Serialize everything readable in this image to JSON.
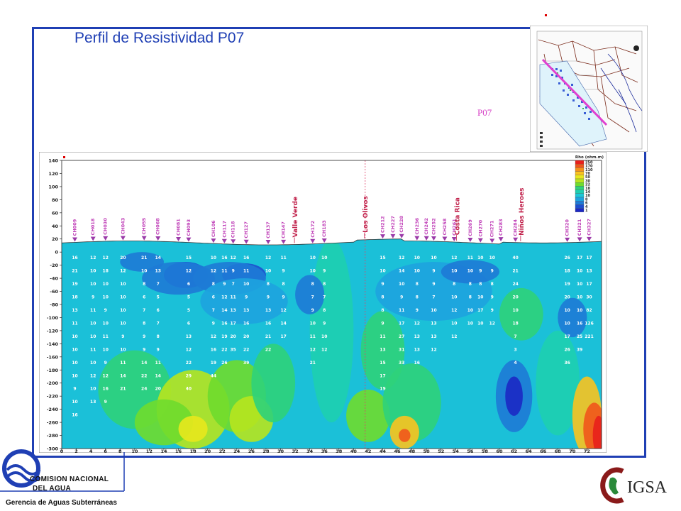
{
  "slide": {
    "title": "Perfil de Resistividad P07",
    "inset_label": "P07",
    "colors": {
      "frame": "#1f3fb4",
      "title": "#1f3fb4",
      "profile_line": "#e040d0"
    }
  },
  "logos": {
    "cna_line1": "COMISION NACIONAL",
    "cna_line2": "DEL AGUA",
    "cna_subtitle": "Gerencia de Aguas Subterráneas",
    "igsa_text": "IGSA"
  },
  "chart_data": {
    "type": "heatmap",
    "title": "",
    "xlabel": "",
    "ylabel": "",
    "xlim": [
      0,
      74
    ],
    "ylim": [
      -300,
      140
    ],
    "x_ticks": [
      0,
      2,
      4,
      6,
      8,
      10,
      12,
      14,
      16,
      18,
      20,
      22,
      24,
      26,
      28,
      30,
      32,
      34,
      36,
      38,
      40,
      42,
      44,
      46,
      48,
      50,
      52,
      54,
      56,
      58,
      60,
      62,
      64,
      66,
      68,
      70,
      72
    ],
    "y_ticks": [
      140,
      120,
      100,
      80,
      60,
      40,
      20,
      0,
      -20,
      -40,
      -60,
      -80,
      -100,
      -120,
      -140,
      -160,
      -180,
      -200,
      -220,
      -240,
      -260,
      -280,
      -300
    ],
    "grid": false,
    "legend": {
      "title": "Rho (ohm.m)",
      "placement": "top-right",
      "levels": [
        250,
        170,
        110,
        70,
        50,
        30,
        22,
        18,
        14,
        10,
        8,
        6,
        4,
        1
      ],
      "colors": [
        "#e8201c",
        "#f0561c",
        "#f5931d",
        "#f9c31f",
        "#e8e81d",
        "#b7e41e",
        "#6fdc2e",
        "#2fd27a",
        "#1ecfb0",
        "#1bc7d8",
        "#1ea3df",
        "#1e7ad6",
        "#1d4fcf",
        "#1c28c4"
      ]
    },
    "sondeos": [
      {
        "name": "CH009",
        "x": 1.8
      },
      {
        "name": "CH018",
        "x": 4.3
      },
      {
        "name": "CH030",
        "x": 6.0
      },
      {
        "name": "CH043",
        "x": 8.4
      },
      {
        "name": "CH055",
        "x": 11.3
      },
      {
        "name": "CH068",
        "x": 13.2
      },
      {
        "name": "CH081",
        "x": 16.0
      },
      {
        "name": "CH093",
        "x": 17.4
      },
      {
        "name": "CH106",
        "x": 20.8
      },
      {
        "name": "CH117",
        "x": 22.3
      },
      {
        "name": "CH118",
        "x": 23.5
      },
      {
        "name": "CH127",
        "x": 25.3
      },
      {
        "name": "CH137",
        "x": 28.3
      },
      {
        "name": "CH147",
        "x": 30.4
      },
      {
        "name": "CH172",
        "x": 34.4
      },
      {
        "name": "CH183",
        "x": 36.0
      },
      {
        "name": "CH212",
        "x": 44.0
      },
      {
        "name": "CH227",
        "x": 45.4
      },
      {
        "name": "CH228",
        "x": 46.6
      },
      {
        "name": "CH236",
        "x": 48.7
      },
      {
        "name": "CH242",
        "x": 50.0
      },
      {
        "name": "CH252",
        "x": 51.0
      },
      {
        "name": "CH258",
        "x": 52.5
      },
      {
        "name": "CH261",
        "x": 53.8
      },
      {
        "name": "CH269",
        "x": 56.0
      },
      {
        "name": "CH270",
        "x": 57.4
      },
      {
        "name": "CH271",
        "x": 59.0
      },
      {
        "name": "CH283",
        "x": 60.2
      },
      {
        "name": "CH284",
        "x": 62.2
      },
      {
        "name": "CH320",
        "x": 69.3
      },
      {
        "name": "CH321",
        "x": 71.0
      },
      {
        "name": "CH327",
        "x": 72.3
      }
    ],
    "localities": [
      {
        "name": "Valle Verde",
        "x": 32.0
      },
      {
        "name": "Los Olivos",
        "x": 41.6
      },
      {
        "name": "Costa Rica",
        "x": 54.2
      },
      {
        "name": "Niños Heroes",
        "x": 63.0
      }
    ],
    "resistivity_columns": [
      {
        "x": 1.8,
        "values": [
          "16",
          "21",
          "19",
          "18",
          "13",
          "11",
          "10",
          "10",
          "10",
          "10",
          "9",
          "10",
          "16"
        ]
      },
      {
        "x": 4.3,
        "values": [
          "12",
          "10",
          "10",
          "9",
          "11",
          "10",
          "10",
          "11",
          "10",
          "12",
          "10",
          "13"
        ]
      },
      {
        "x": 6.0,
        "values": [
          "12",
          "18",
          "10",
          "10",
          "9",
          "10",
          "11",
          "10",
          "9",
          "12",
          "16",
          "9"
        ]
      },
      {
        "x": 8.4,
        "values": [
          "20",
          "12",
          "10",
          "10",
          "10",
          "10",
          "9",
          "10",
          "11",
          "14",
          "21"
        ]
      },
      {
        "x": 11.3,
        "values": [
          "21",
          "10",
          "8",
          "6",
          "7",
          "8",
          "9",
          "9",
          "14",
          "22",
          "24"
        ]
      },
      {
        "x": 13.2,
        "values": [
          "14",
          "13",
          "7",
          "5",
          "6",
          "7",
          "8",
          "9",
          "11",
          "14",
          "20"
        ]
      },
      {
        "x": 17.4,
        "values": [
          "15",
          "12",
          "6",
          "5",
          "5",
          "6",
          "13",
          "12",
          "22",
          "29",
          "40"
        ]
      },
      {
        "x": 20.8,
        "values": [
          "10",
          "12",
          "8",
          "6",
          "7",
          "9",
          "12",
          "16",
          "19",
          "44"
        ]
      },
      {
        "x": 22.3,
        "values": [
          "16",
          "11",
          "9",
          "12",
          "14",
          "16",
          "19",
          "22",
          "26"
        ]
      },
      {
        "x": 23.5,
        "values": [
          "12",
          "9",
          "7",
          "11",
          "13",
          "17",
          "20",
          "35"
        ]
      },
      {
        "x": 25.3,
        "values": [
          "16",
          "11",
          "10",
          "9",
          "13",
          "16",
          "20",
          "22",
          "39"
        ]
      },
      {
        "x": 28.3,
        "values": [
          "12",
          "10",
          "8",
          "9",
          "13",
          "16",
          "21",
          "22"
        ]
      },
      {
        "x": 30.4,
        "values": [
          "11",
          "9",
          "8",
          "9",
          "12",
          "14",
          "17"
        ]
      },
      {
        "x": 34.4,
        "values": [
          "10",
          "10",
          "8",
          "7",
          "9",
          "10",
          "11",
          "12",
          "21"
        ]
      },
      {
        "x": 36.0,
        "values": [
          "10",
          "9",
          "8",
          "7",
          "8",
          "9",
          "10",
          "12"
        ]
      },
      {
        "x": 44.0,
        "values": [
          "15",
          "10",
          "9",
          "8",
          "8",
          "9",
          "11",
          "13",
          "15",
          "17",
          "19"
        ]
      },
      {
        "x": 46.6,
        "values": [
          "12",
          "14",
          "10",
          "9",
          "11",
          "17",
          "27",
          "31",
          "33"
        ]
      },
      {
        "x": 48.7,
        "values": [
          "10",
          "10",
          "8",
          "8",
          "9",
          "12",
          "13",
          "13",
          "16"
        ]
      },
      {
        "x": 51.0,
        "values": [
          "10",
          "9",
          "9",
          "7",
          "10",
          "13",
          "13",
          "12"
        ]
      },
      {
        "x": 53.8,
        "values": [
          "12",
          "10",
          "8",
          "10",
          "12",
          "10",
          "12"
        ]
      },
      {
        "x": 56.0,
        "values": [
          "11",
          "10",
          "8",
          "8",
          "10",
          "10"
        ]
      },
      {
        "x": 57.4,
        "values": [
          "10",
          "9",
          "8",
          "10",
          "17",
          "10"
        ]
      },
      {
        "x": 59.0,
        "values": [
          "10",
          "9",
          "8",
          "9",
          "9",
          "12"
        ]
      },
      {
        "x": 62.2,
        "values": [
          "40",
          "21",
          "24",
          "20",
          "10",
          "18",
          "7",
          "3",
          "4"
        ]
      },
      {
        "x": 69.3,
        "values": [
          "26",
          "18",
          "19",
          "20",
          "10",
          "10",
          "17",
          "26",
          "36"
        ]
      },
      {
        "x": 71.0,
        "values": [
          "17",
          "10",
          "10",
          "10",
          "10",
          "16",
          "25",
          "39"
        ]
      },
      {
        "x": 72.3,
        "values": [
          "17",
          "13",
          "17",
          "30",
          "82",
          "126",
          "221"
        ]
      }
    ]
  }
}
